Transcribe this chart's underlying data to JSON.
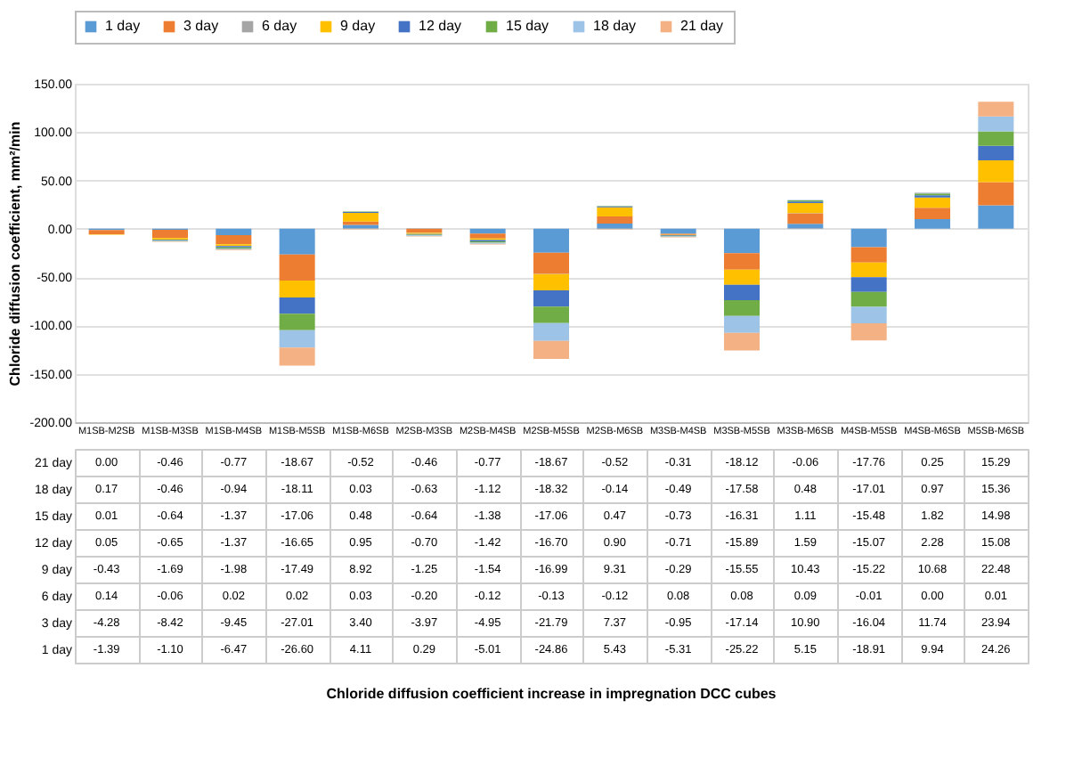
{
  "chart_data": {
    "type": "bar",
    "stacked": true,
    "ylabel": "Chloride diffusion coefficient, mm²/min",
    "annotations": [
      "Chloride diffusion coefficient increase in impregnation DCC cubes"
    ],
    "categories": [
      "M1SB-M2SB",
      "M1SB-M3SB",
      "M1SB-M4SB",
      "M1SB-M5SB",
      "M1SB-M6SB",
      "M2SB-M3SB",
      "M2SB-M4SB",
      "M2SB-M5SB",
      "M2SB-M6SB",
      "M3SB-M4SB",
      "M3SB-M5SB",
      "M3SB-M6SB",
      "M4SB-M5SB",
      "M4SB-M6SB",
      "M5SB-M6SB"
    ],
    "series": [
      {
        "name": "1 day",
        "color": "#5b9bd5",
        "values": [
          -1.39,
          -1.1,
          -6.47,
          -26.6,
          4.11,
          0.29,
          -5.01,
          -24.86,
          5.43,
          -5.31,
          -25.22,
          5.15,
          -18.91,
          9.94,
          24.26
        ],
        "value_labels": [
          "-1.39",
          "-1.10",
          "-6.47",
          "-26.60",
          "4.11",
          "0.29",
          "-5.01",
          "-24.86",
          "5.43",
          "-5.31",
          "-25.22",
          "5.15",
          "-18.91",
          "9.94",
          "24.26"
        ]
      },
      {
        "name": "3 day",
        "color": "#ed7d31",
        "values": [
          -4.28,
          -8.42,
          -9.45,
          -27.01,
          3.4,
          -3.97,
          -4.95,
          -21.79,
          7.37,
          -0.95,
          -17.14,
          10.9,
          -16.04,
          11.74,
          23.94
        ],
        "value_labels": [
          "-4.28",
          "-8.42",
          "-9.45",
          "-27.01",
          "3.40",
          "-3.97",
          "-4.95",
          "-21.79",
          "7.37",
          "-0.95",
          "-17.14",
          "10.90",
          "-16.04",
          "11.74",
          "23.94"
        ]
      },
      {
        "name": "6 day",
        "color": "#a5a5a5",
        "values": [
          0.14,
          -0.06,
          0.02,
          0.02,
          0.03,
          -0.2,
          -0.12,
          -0.13,
          -0.12,
          0.08,
          0.08,
          0.09,
          -0.01,
          0.0,
          0.01
        ],
        "value_labels": [
          "0.14",
          "-0.06",
          "0.02",
          "0.02",
          "0.03",
          "-0.20",
          "-0.12",
          "-0.13",
          "-0.12",
          "0.08",
          "0.08",
          "0.09",
          "-0.01",
          "0.00",
          "0.01"
        ]
      },
      {
        "name": "9 day",
        "color": "#ffc000",
        "values": [
          -0.43,
          -1.69,
          -1.98,
          -17.49,
          8.92,
          -1.25,
          -1.54,
          -16.99,
          9.31,
          -0.29,
          -15.55,
          10.43,
          -15.22,
          10.68,
          22.48
        ],
        "value_labels": [
          "-0.43",
          "-1.69",
          "-1.98",
          "-17.49",
          "8.92",
          "-1.25",
          "-1.54",
          "-16.99",
          "9.31",
          "-0.29",
          "-15.55",
          "10.43",
          "-15.22",
          "10.68",
          "22.48"
        ]
      },
      {
        "name": "12 day",
        "color": "#4472c4",
        "values": [
          0.05,
          -0.65,
          -1.37,
          -16.65,
          0.95,
          -0.7,
          -1.42,
          -16.7,
          0.9,
          -0.71,
          -15.89,
          1.59,
          -15.07,
          2.28,
          15.08
        ],
        "value_labels": [
          "0.05",
          "-0.65",
          "-1.37",
          "-16.65",
          "0.95",
          "-0.70",
          "-1.42",
          "-16.70",
          "0.90",
          "-0.71",
          "-15.89",
          "1.59",
          "-15.07",
          "2.28",
          "15.08"
        ]
      },
      {
        "name": "15 day",
        "color": "#70ad47",
        "values": [
          0.01,
          -0.64,
          -1.37,
          -17.06,
          0.48,
          -0.64,
          -1.38,
          -17.06,
          0.47,
          -0.73,
          -16.31,
          1.11,
          -15.48,
          1.82,
          14.98
        ],
        "value_labels": [
          "0.01",
          "-0.64",
          "-1.37",
          "-17.06",
          "0.48",
          "-0.64",
          "-1.38",
          "-17.06",
          "0.47",
          "-0.73",
          "-16.31",
          "1.11",
          "-15.48",
          "1.82",
          "14.98"
        ]
      },
      {
        "name": "18 day",
        "color": "#9dc3e6",
        "values": [
          0.17,
          -0.46,
          -0.94,
          -18.11,
          0.03,
          -0.63,
          -1.12,
          -18.32,
          -0.14,
          -0.49,
          -17.58,
          0.48,
          -17.01,
          0.97,
          15.36
        ],
        "value_labels": [
          "0.17",
          "-0.46",
          "-0.94",
          "-18.11",
          "0.03",
          "-0.63",
          "-1.12",
          "-18.32",
          "-0.14",
          "-0.49",
          "-17.58",
          "0.48",
          "-17.01",
          "0.97",
          "15.36"
        ]
      },
      {
        "name": "21 day",
        "color": "#f4b183",
        "values": [
          0.0,
          -0.46,
          -0.77,
          -18.67,
          -0.52,
          -0.46,
          -0.77,
          -18.67,
          -0.52,
          -0.31,
          -18.12,
          -0.06,
          -17.76,
          0.25,
          15.29
        ],
        "value_labels": [
          "0.00",
          "-0.46",
          "-0.77",
          "-18.67",
          "-0.52",
          "-0.46",
          "-0.77",
          "-18.67",
          "-0.52",
          "-0.31",
          "-18.12",
          "-0.06",
          "-17.76",
          "0.25",
          "15.29"
        ]
      }
    ],
    "ylim": [
      -200,
      150
    ],
    "yticks": [
      {
        "value": -200,
        "label": "-200.00"
      },
      {
        "value": -150,
        "label": "-150.00"
      },
      {
        "value": -100,
        "label": "-100.00"
      },
      {
        "value": -50,
        "label": "-50.00"
      },
      {
        "value": 0,
        "label": "0.00"
      },
      {
        "value": 50,
        "label": "50.00"
      },
      {
        "value": 100,
        "label": "100.00"
      },
      {
        "value": 150,
        "label": "150.00"
      }
    ],
    "grid": "y",
    "legend": "top"
  }
}
